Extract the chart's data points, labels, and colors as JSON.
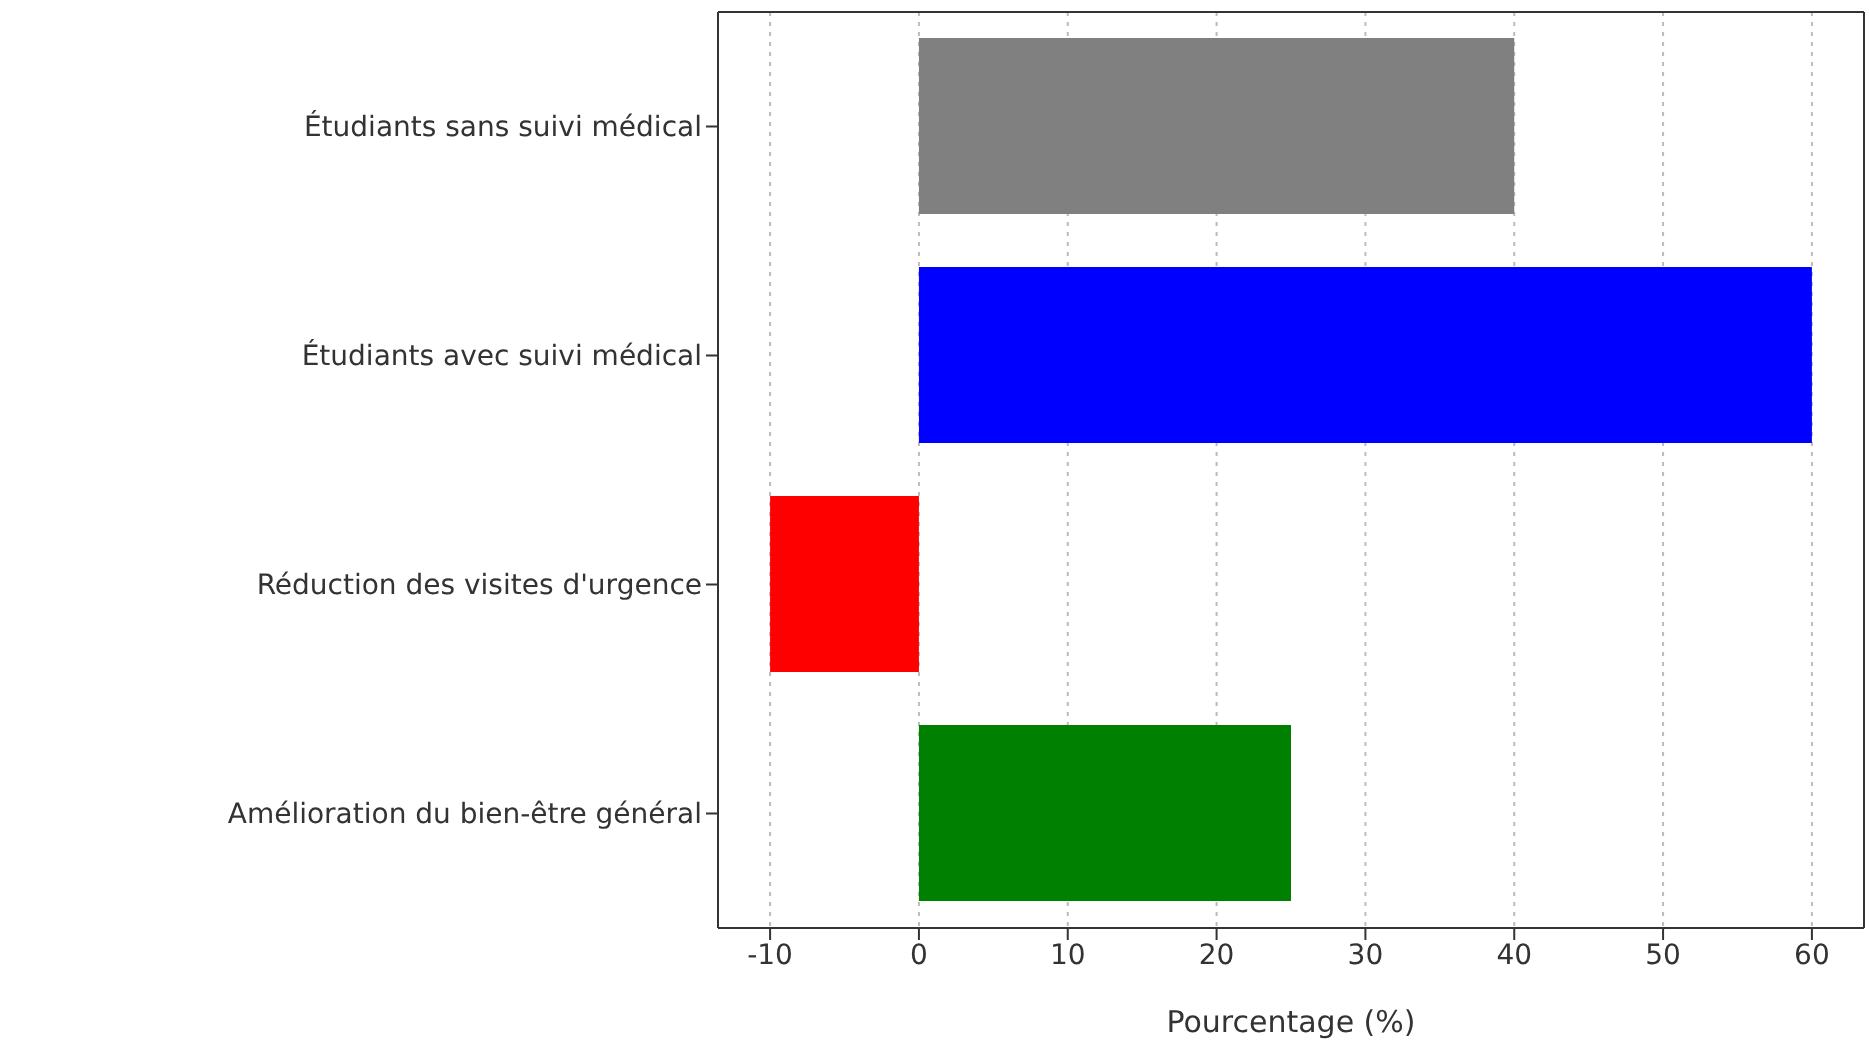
{
  "chart_data": {
    "type": "bar",
    "orientation": "horizontal",
    "categories": [
      "Étudiants sans suivi médical",
      "Étudiants avec suivi médical",
      "Réduction des visites d'urgence",
      "Amélioration du bien-être général"
    ],
    "values": [
      40,
      60,
      -10,
      25
    ],
    "colors": [
      "#808080",
      "#0000ff",
      "#ff0000",
      "#008000"
    ],
    "xlabel": "Pourcentage (%)",
    "xlim": [
      -13.5,
      63.5
    ],
    "xticks": [
      -10,
      0,
      10,
      20,
      30,
      40,
      50,
      60
    ],
    "grid": "x"
  }
}
